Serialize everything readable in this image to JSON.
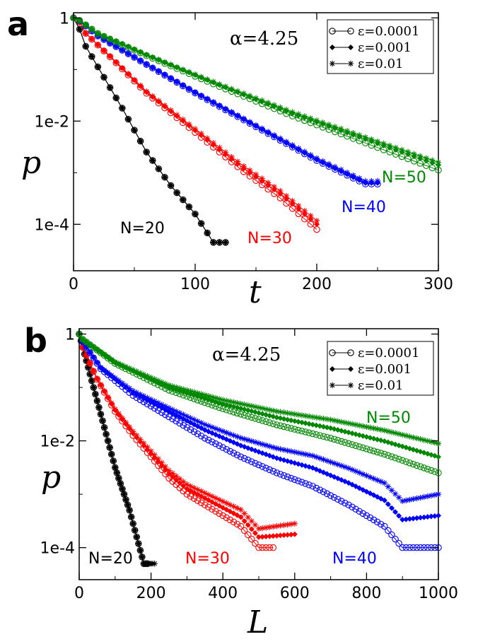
{
  "chart_data": [
    {
      "panel": "a",
      "type": "line",
      "annotation": "α=4.25",
      "xlabel": "t",
      "ylabel": "p",
      "xlim": [
        0,
        300
      ],
      "ylim_log10": [
        -4.9,
        0.1
      ],
      "x_ticks": [
        0,
        100,
        200,
        300
      ],
      "x_tick_labels": [
        "0",
        "100",
        "200",
        "300"
      ],
      "y_ticks_log10": [
        0,
        -2,
        -4
      ],
      "y_tick_labels": [
        "1",
        "1e-2",
        "1e-4"
      ],
      "legend": [
        "ε=0.0001",
        "ε=0.001",
        "ε=0.01"
      ],
      "series": [
        {
          "name": "N=20",
          "color": "#000000",
          "x_max": 125,
          "decay": [
            [
              0,
              0
            ],
            [
              5,
              -0.22
            ],
            [
              10,
              -0.55
            ],
            [
              20,
              -0.95
            ],
            [
              40,
              -1.75
            ],
            [
              60,
              -2.6
            ],
            [
              80,
              -3.25
            ],
            [
              100,
              -3.8
            ],
            [
              115,
              -4.35
            ],
            [
              125,
              -4.35
            ]
          ],
          "eps_offset": [
            0,
            0,
            0
          ]
        },
        {
          "name": "N=30",
          "color": "#ff0000",
          "x_max": 200,
          "decay": [
            [
              0,
              0
            ],
            [
              5,
              -0.08
            ],
            [
              10,
              -0.3
            ],
            [
              30,
              -0.75
            ],
            [
              60,
              -1.45
            ],
            [
              100,
              -2.2
            ],
            [
              140,
              -2.95
            ],
            [
              170,
              -3.45
            ],
            [
              200,
              -4.05
            ]
          ],
          "eps_offset": [
            -0.05,
            0.05,
            0.12
          ]
        },
        {
          "name": "N=40",
          "color": "#0000ff",
          "x_max": 250,
          "decay": [
            [
              0,
              0
            ],
            [
              5,
              -0.06
            ],
            [
              20,
              -0.35
            ],
            [
              60,
              -0.9
            ],
            [
              100,
              -1.45
            ],
            [
              150,
              -2.1
            ],
            [
              200,
              -2.75
            ],
            [
              240,
              -3.2
            ],
            [
              250,
              -3.2
            ]
          ],
          "eps_offset": [
            -0.02,
            0,
            0.04
          ]
        },
        {
          "name": "N=50",
          "color": "#008800",
          "x_max": 300,
          "decay": [
            [
              0,
              0
            ],
            [
              5,
              -0.05
            ],
            [
              20,
              -0.3
            ],
            [
              60,
              -0.72
            ],
            [
              120,
              -1.3
            ],
            [
              180,
              -1.85
            ],
            [
              240,
              -2.35
            ],
            [
              300,
              -2.85
            ]
          ],
          "eps_offset": [
            -0.1,
            0,
            0.05
          ]
        }
      ]
    },
    {
      "panel": "b",
      "type": "line",
      "annotation": "α=4.25",
      "xlabel": "L",
      "ylabel": "p",
      "xlim": [
        0,
        1000
      ],
      "ylim_log10": [
        -4.6,
        0.1
      ],
      "x_ticks": [
        0,
        200,
        400,
        600,
        800,
        1000
      ],
      "x_tick_labels": [
        "0",
        "200",
        "400",
        "600",
        "800",
        "1000"
      ],
      "y_ticks_log10": [
        0,
        -2,
        -4
      ],
      "y_tick_labels": [
        "1",
        "1e-2",
        "1e-4"
      ],
      "legend": [
        "ε=0.0001",
        "ε=0.001",
        "ε=0.01"
      ],
      "series": [
        {
          "name": "N=20",
          "color": "#000000",
          "x_max": [
            190,
            200,
            210
          ],
          "decay": [
            [
              0,
              0
            ],
            [
              20,
              -0.5
            ],
            [
              60,
              -1.5
            ],
            [
              100,
              -2.5
            ],
            [
              140,
              -3.3
            ],
            [
              160,
              -3.8
            ],
            [
              180,
              -4.3
            ],
            [
              210,
              -4.3
            ]
          ],
          "eps_offset": [
            0,
            0,
            0
          ]
        },
        {
          "name": "N=30",
          "color": "#ff0000",
          "x_max": [
            540,
            600,
            600
          ],
          "decay": [
            [
              0,
              0
            ],
            [
              10,
              -0.25
            ],
            [
              50,
              -0.85
            ],
            [
              100,
              -1.45
            ],
            [
              150,
              -1.9
            ],
            [
              200,
              -2.3
            ],
            [
              250,
              -2.7
            ],
            [
              300,
              -3.0
            ],
            [
              350,
              -3.2
            ],
            [
              400,
              -3.4
            ],
            [
              450,
              -3.6
            ],
            [
              500,
              -4.0
            ],
            [
              540,
              -4.0
            ]
          ],
          "eps_offset": [
            0,
            0.25,
            0.45
          ]
        },
        {
          "name": "N=40",
          "color": "#0000ff",
          "x_max": 1000,
          "decay": [
            [
              0,
              0
            ],
            [
              10,
              -0.15
            ],
            [
              60,
              -0.65
            ],
            [
              150,
              -1.15
            ],
            [
              250,
              -1.55
            ],
            [
              350,
              -1.95
            ],
            [
              450,
              -2.3
            ],
            [
              550,
              -2.6
            ],
            [
              650,
              -2.85
            ],
            [
              750,
              -3.2
            ],
            [
              850,
              -3.6
            ],
            [
              900,
              -4.0
            ],
            [
              1000,
              -4.0
            ]
          ],
          "eps_offset": [
            0,
            0.6,
            1.0
          ]
        },
        {
          "name": "N=50",
          "color": "#008800",
          "x_max": 1000,
          "decay": [
            [
              0,
              0
            ],
            [
              10,
              -0.1
            ],
            [
              100,
              -0.55
            ],
            [
              250,
              -1.05
            ],
            [
              400,
              -1.4
            ],
            [
              550,
              -1.7
            ],
            [
              700,
              -1.95
            ],
            [
              850,
              -2.25
            ],
            [
              1000,
              -2.6
            ]
          ],
          "eps_offset": [
            0,
            0.3,
            0.55
          ]
        }
      ]
    }
  ]
}
